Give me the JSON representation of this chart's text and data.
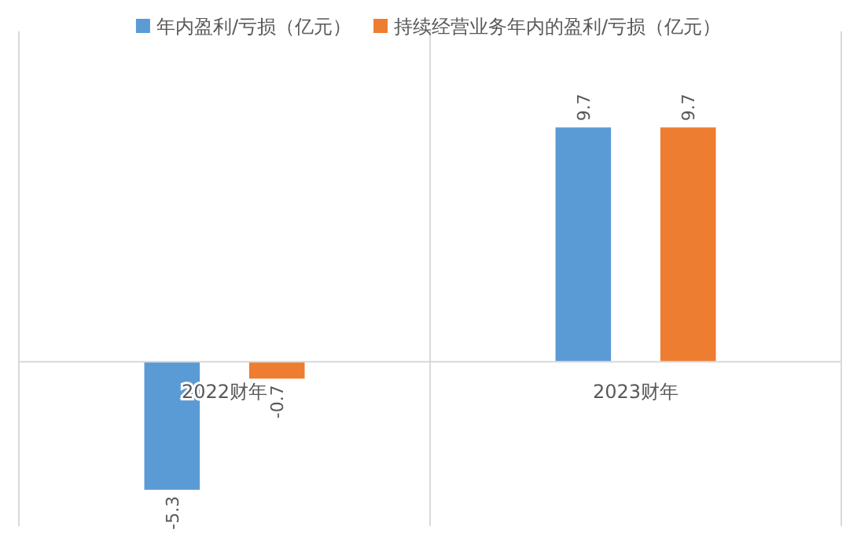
{
  "chart_data": {
    "type": "bar",
    "categories": [
      "2022财年",
      "2023财年"
    ],
    "series": [
      {
        "name": "年内盈利/亏损（亿元）",
        "color": "#5b9bd5",
        "values": [
          -5.3,
          9.7
        ]
      },
      {
        "name": "持续经营业务年内的盈利/亏损（亿元）",
        "color": "#ed7d31",
        "values": [
          -0.7,
          9.7
        ]
      }
    ],
    "data_labels": true,
    "legend": "top",
    "grid": "x"
  }
}
